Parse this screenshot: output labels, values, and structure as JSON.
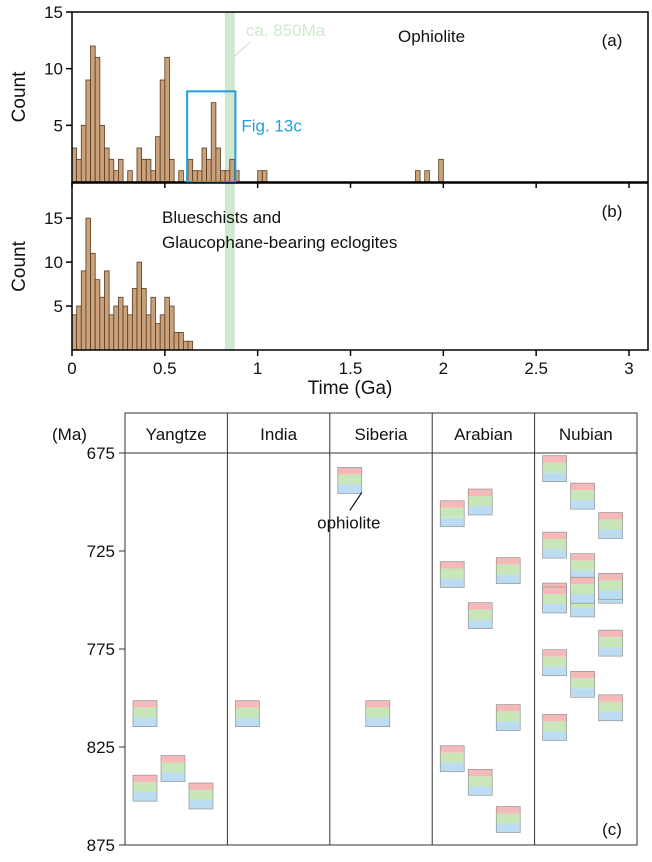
{
  "chart_data": [
    {
      "type": "histogram",
      "panel_label": "(a)",
      "title": "Ophiolite",
      "ylabel": "Count",
      "color": "#c9a27c",
      "edgecolor": "#5a3a20",
      "bins": [
        0,
        0.025,
        0.05,
        0.075,
        0.1,
        0.125,
        0.15,
        0.175,
        0.2,
        0.225,
        0.25,
        0.275,
        0.3,
        0.325,
        0.35,
        0.375,
        0.4,
        0.425,
        0.45,
        0.475,
        0.5,
        0.525,
        0.55,
        0.575,
        0.6,
        0.625,
        0.65,
        0.675,
        0.7,
        0.725,
        0.75,
        0.775,
        0.8,
        0.825,
        0.85,
        0.875,
        0.9,
        0.925,
        0.95,
        0.975,
        1,
        1.025,
        1.05,
        1.075,
        1.1,
        1.125,
        1.15,
        1.175,
        1.2,
        1.225,
        1.25,
        1.275,
        1.3,
        1.325,
        1.35,
        1.375,
        1.4,
        1.425,
        1.45,
        1.475,
        1.5,
        1.525,
        1.55,
        1.575,
        1.6,
        1.625,
        1.65,
        1.675,
        1.7,
        1.725,
        1.75,
        1.775,
        1.8,
        1.825,
        1.85,
        1.875,
        1.9,
        1.925,
        1.95,
        1.975,
        2
      ],
      "values": [
        3,
        2,
        5,
        9,
        12,
        11,
        5,
        3,
        2,
        1,
        2,
        0,
        1,
        0,
        3,
        2,
        2,
        1,
        4,
        9,
        11,
        2,
        0,
        1,
        0,
        2,
        1,
        1,
        3,
        2,
        7,
        3,
        1,
        1,
        2,
        1,
        0,
        0,
        0,
        0,
        1,
        1,
        0,
        0,
        0,
        0,
        0,
        0,
        0,
        0,
        0,
        0,
        0,
        0,
        0,
        0,
        0,
        0,
        0,
        0,
        0,
        0,
        0,
        0,
        0,
        0,
        0,
        0,
        0,
        0,
        0,
        0,
        0,
        0,
        1,
        0,
        1,
        0,
        0,
        2
      ],
      "xlim": [
        0,
        3.0
      ],
      "xticks": [
        0,
        0.5,
        1.0,
        1.5,
        2.0,
        2.5,
        3.0
      ],
      "ylim": [
        0,
        15
      ],
      "yticks": [
        5,
        10,
        15
      ],
      "band": {
        "text": "ca. 850Ma",
        "x": 0.85,
        "color": "#cfe8cf"
      },
      "box": {
        "text": "Fig. 13c",
        "x": [
          0.62,
          0.88
        ],
        "y": 8,
        "color": "#1ea0e0"
      }
    },
    {
      "type": "histogram",
      "panel_label": "(b)",
      "title": [
        "Blueschists and",
        "Glaucophane-bearing eclogites"
      ],
      "ylabel": "Count",
      "xlabel": "Time (Ga)",
      "color": "#c9a27c",
      "edgecolor": "#5a3a20",
      "bins": [
        0,
        0.025,
        0.05,
        0.075,
        0.1,
        0.125,
        0.15,
        0.175,
        0.2,
        0.225,
        0.25,
        0.275,
        0.3,
        0.325,
        0.35,
        0.375,
        0.4,
        0.425,
        0.45,
        0.475,
        0.5,
        0.525,
        0.55,
        0.575,
        0.6,
        0.625,
        0.65
      ],
      "values": [
        4,
        5,
        9,
        15,
        11,
        8,
        6,
        9,
        4,
        5,
        6,
        5,
        4,
        7,
        10,
        7,
        4,
        6,
        3,
        4,
        6,
        5,
        2,
        2,
        1,
        1
      ],
      "xlim": [
        0,
        3.0
      ],
      "xticks": [
        0,
        0.5,
        1.0,
        1.5,
        2.0,
        2.5,
        3.0
      ],
      "ylim": [
        0,
        19
      ],
      "yticks": [
        5,
        10,
        15
      ]
    },
    {
      "type": "columns",
      "panel_label": "(c)",
      "ylabel": "(Ma)",
      "ylim": [
        675,
        875
      ],
      "yticks": [
        675,
        725,
        775,
        825,
        875
      ],
      "y_inverted": true,
      "columns": [
        {
          "name": "Yangtze",
          "values": [
            808,
            836,
            850,
            846
          ]
        },
        {
          "name": "India",
          "values": [
            808
          ]
        },
        {
          "name": "Siberia",
          "values": [
            689,
            808
          ]
        },
        {
          "name": "Arabian",
          "values": [
            706,
            700,
            735,
            737,
            758,
            810,
            831,
            843,
            862
          ]
        },
        {
          "name": "Nubian",
          "values": [
            683,
            697,
            712,
            722,
            733,
            745,
            748,
            752,
            743,
            750,
            745,
            772,
            782,
            793,
            805,
            815
          ]
        }
      ],
      "annotation": {
        "text": "ophiolite",
        "column": 2,
        "y": 689
      }
    }
  ]
}
